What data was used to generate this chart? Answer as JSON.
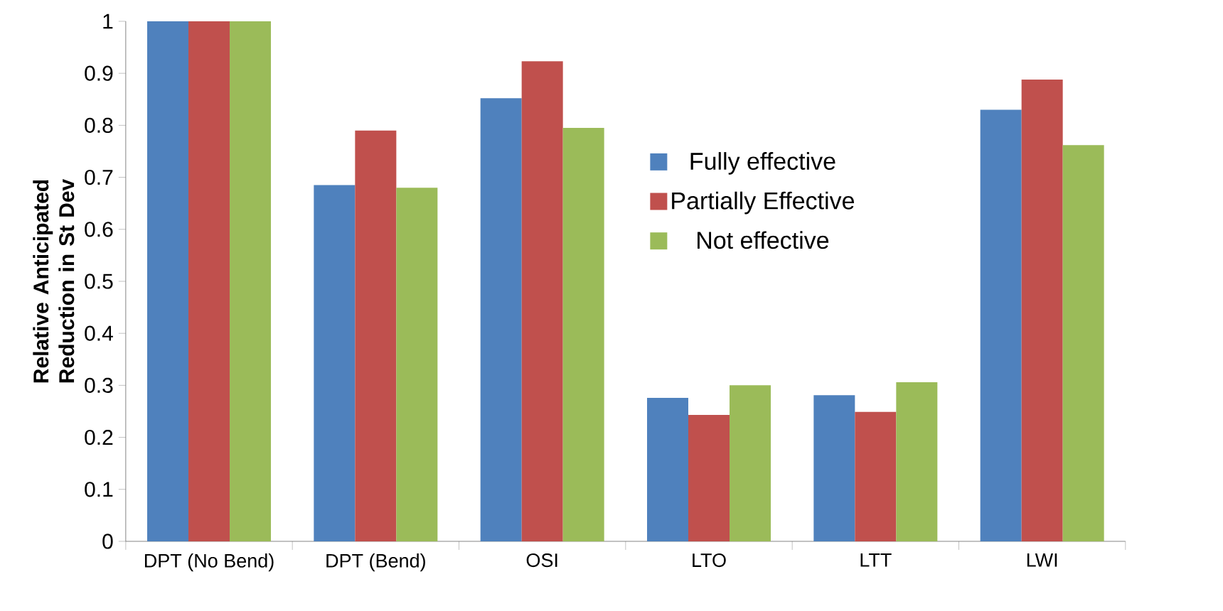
{
  "chart_data": {
    "type": "bar",
    "ylabel": "Relative Anticipated Reduction in St Dev",
    "categories": [
      "DPT (No Bend)",
      "DPT (Bend)",
      "OSI",
      "LTO",
      "LTT",
      "LWI"
    ],
    "series": [
      {
        "name": "Fully effective",
        "color": "#4f81bd",
        "values": [
          1,
          0.685,
          0.852,
          0.276,
          0.281,
          0.83
        ]
      },
      {
        "name": "Partially Effective",
        "color": "#c0504d",
        "values": [
          1,
          0.79,
          0.923,
          0.243,
          0.249,
          0.888
        ]
      },
      {
        "name": "Not effective",
        "color": "#9bbb59",
        "values": [
          1,
          0.68,
          0.795,
          0.3,
          0.306,
          0.762
        ]
      }
    ],
    "ylim": [
      0,
      1
    ],
    "yticks": [
      0,
      0.1,
      0.2,
      0.3,
      0.4,
      0.5,
      0.6,
      0.7,
      0.8,
      0.9,
      1
    ],
    "grid": false,
    "legend": "right"
  }
}
